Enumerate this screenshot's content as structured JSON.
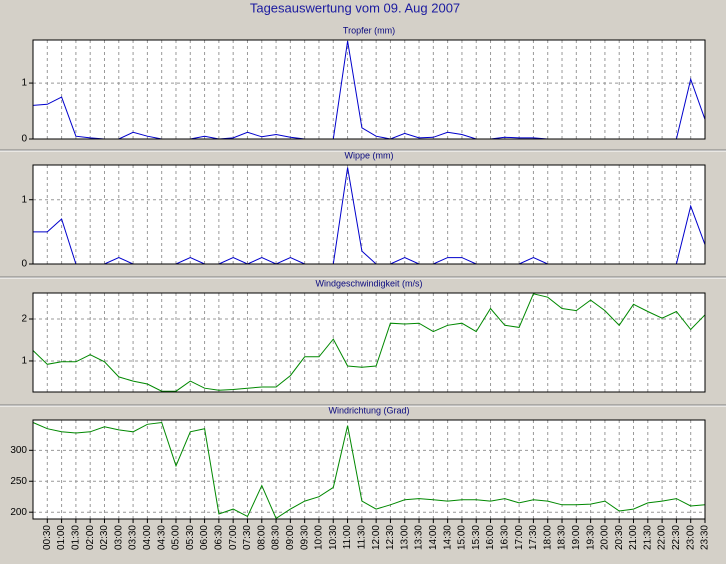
{
  "title": "Tagesauswertung vom 09. Aug 2007",
  "chart_data": [
    {
      "type": "line",
      "title": "Tropfer (mm)",
      "color": "#0000cc",
      "ylim": [
        0,
        1.77
      ],
      "yticks": [
        0,
        1
      ],
      "grid": true,
      "values": [
        0.6,
        0.62,
        0.75,
        0.05,
        0.02,
        0,
        0,
        0.12,
        0.05,
        0,
        0,
        0,
        0.05,
        0,
        0.02,
        0.12,
        0.04,
        0.08,
        0.03,
        0,
        0,
        0,
        1.75,
        0.2,
        0.05,
        0,
        0.1,
        0.02,
        0.03,
        0.12,
        0.08,
        0,
        0,
        0.03,
        0.02,
        0.02,
        0,
        0,
        0,
        0,
        0,
        0,
        0,
        0,
        0,
        0,
        1.07,
        0.35
      ]
    },
    {
      "type": "line",
      "title": "Wippe (mm)",
      "color": "#0000cc",
      "ylim": [
        0,
        1.54
      ],
      "yticks": [
        0,
        1
      ],
      "grid": true,
      "values": [
        0.5,
        0.5,
        0.7,
        0,
        0,
        0,
        0.1,
        0,
        0,
        0,
        0,
        0.1,
        0,
        0,
        0.1,
        0,
        0.1,
        0,
        0.1,
        0,
        0,
        0,
        1.5,
        0.2,
        0,
        0,
        0.1,
        0,
        0,
        0.1,
        0.1,
        0,
        0,
        0,
        0,
        0.1,
        0,
        0,
        0,
        0,
        0,
        0,
        0,
        0,
        0,
        0,
        0.9,
        0.3
      ]
    },
    {
      "type": "line",
      "title": "Windgeschwindigkeit (m/s)",
      "color": "#008800",
      "ylim": [
        0.26,
        2.62
      ],
      "yticks": [
        1,
        2
      ],
      "grid": true,
      "values": [
        1.25,
        0.92,
        0.98,
        0.98,
        1.15,
        0.98,
        0.62,
        0.52,
        0.45,
        0.28,
        0.28,
        0.52,
        0.35,
        0.3,
        0.32,
        0.35,
        0.38,
        0.38,
        0.65,
        1.1,
        1.1,
        1.52,
        0.88,
        0.85,
        0.88,
        1.9,
        1.88,
        1.9,
        1.7,
        1.85,
        1.9,
        1.7,
        2.25,
        1.85,
        1.8,
        2.6,
        2.52,
        2.25,
        2.2,
        2.45,
        2.2,
        1.85,
        2.35,
        2.18,
        2.02,
        2.18,
        1.75,
        2.1
      ]
    },
    {
      "type": "line",
      "title": "Windrichtung (Grad)",
      "color": "#008800",
      "ylim": [
        189,
        349
      ],
      "yticks": [
        200,
        250,
        300
      ],
      "grid": true,
      "values": [
        345,
        335,
        330,
        328,
        330,
        338,
        333,
        330,
        342,
        345,
        275,
        330,
        335,
        197,
        205,
        193,
        243,
        190,
        205,
        218,
        225,
        240,
        340,
        218,
        205,
        212,
        220,
        222,
        220,
        218,
        220,
        220,
        218,
        222,
        215,
        220,
        218,
        212,
        212,
        213,
        218,
        202,
        205,
        215,
        218,
        222,
        210,
        212
      ],
      "categories": [
        null,
        "00:30",
        "01:00",
        "01:30",
        "02:00",
        "02:30",
        "03:00",
        "03:30",
        "04:00",
        "04:30",
        "05:00",
        "05:30",
        "06:00",
        "06:30",
        "07:00",
        "07:30",
        "08:00",
        "08:30",
        "09:00",
        "09:30",
        "10:00",
        "10:30",
        "11:00",
        "11:30",
        "12:00",
        "12:30",
        "13:00",
        "13:30",
        "14:00",
        "14:30",
        "15:00",
        "15:30",
        "16:00",
        "16:30",
        "17:00",
        "17:30",
        "18:00",
        "18:30",
        "19:00",
        "19:30",
        "20:00",
        "20:30",
        "21:00",
        "21:30",
        "22:00",
        "22:30",
        "23:00",
        "23:30"
      ]
    }
  ]
}
